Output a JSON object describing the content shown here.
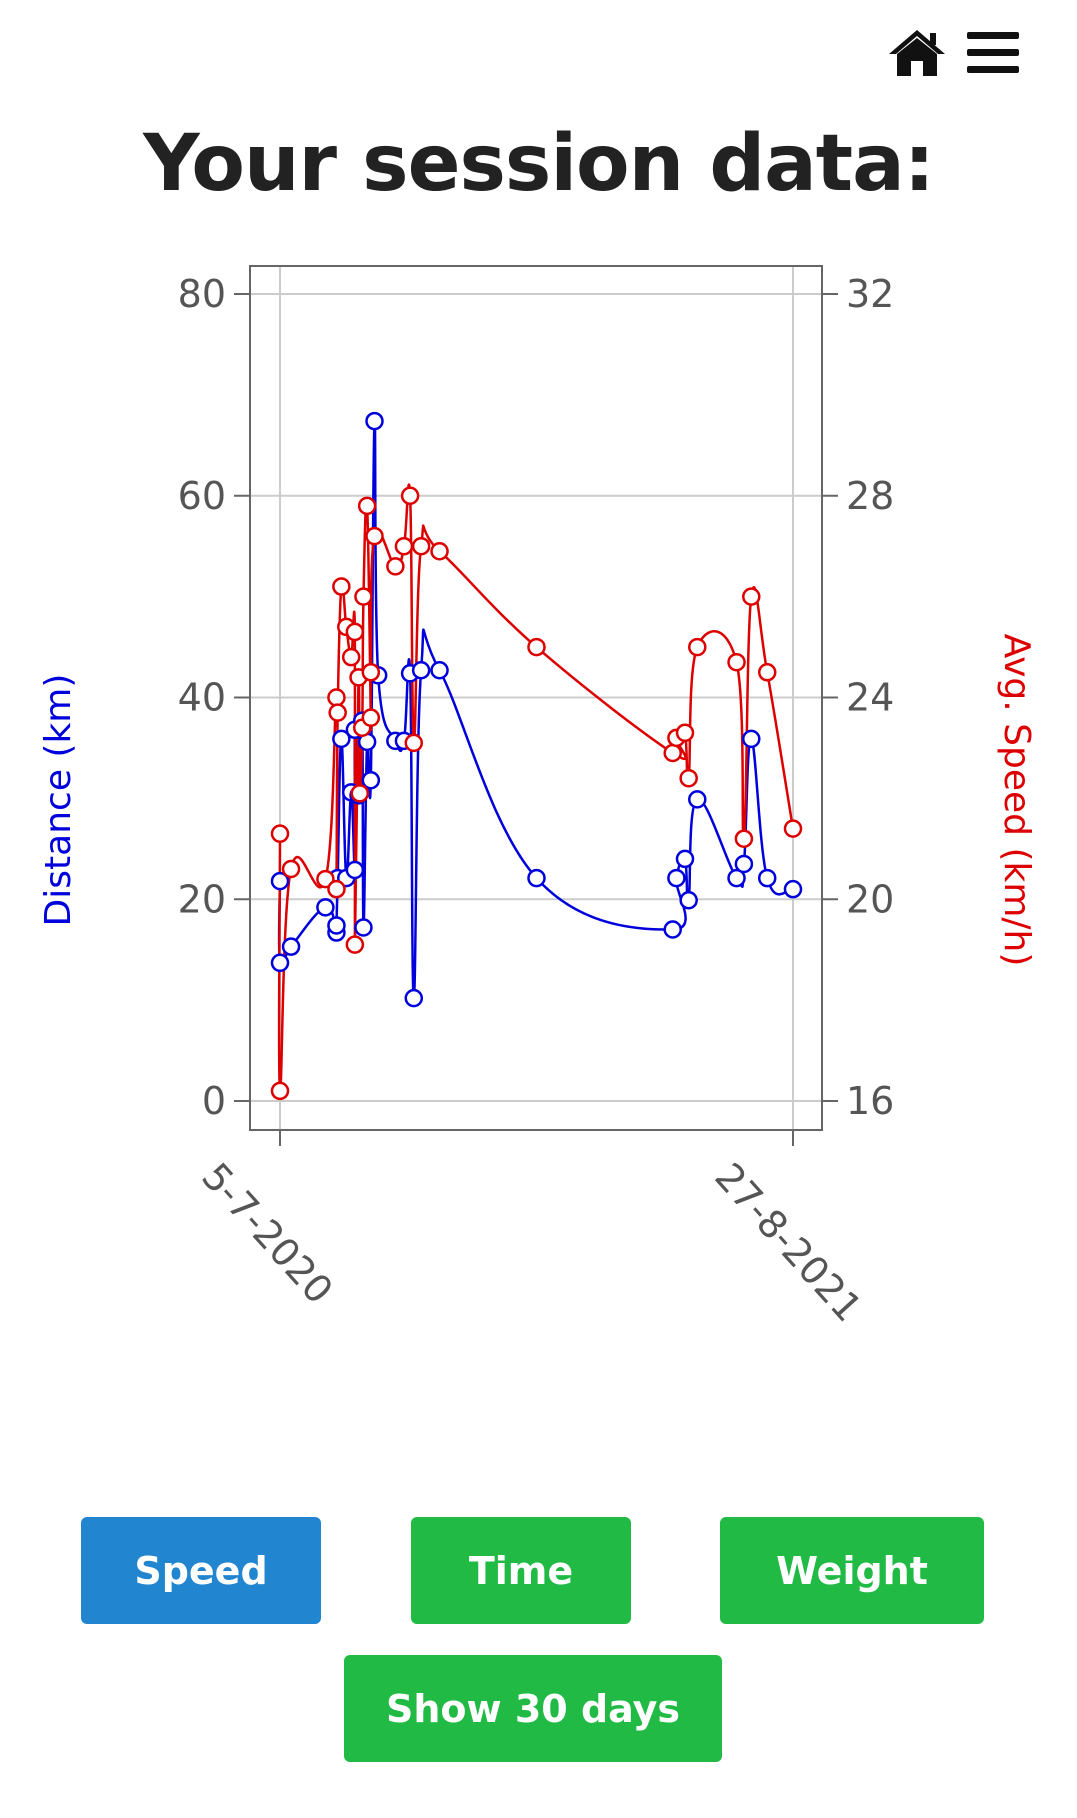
{
  "header": {
    "title": "Your session data:",
    "icons": [
      "home-icon",
      "menu-icon"
    ]
  },
  "colors": {
    "distance": "#0000dd",
    "speed": "#dd0000",
    "primary_button": "#2185d0",
    "secondary_button": "#21ba45",
    "grid": "#cccccc",
    "axis": "#666666"
  },
  "chart_data": {
    "type": "line",
    "xlabel": "",
    "x_range": [
      "2020-07-05",
      "2021-08-27"
    ],
    "x_tick_labels": [
      "5-7-2020",
      "27-8-2021"
    ],
    "y_left": {
      "label": "Distance (km)",
      "range": [
        0,
        80
      ],
      "ticks": [
        "0",
        "20",
        "40",
        "60",
        "80"
      ]
    },
    "y_right": {
      "label": "Avg. Speed (km/h)",
      "range": [
        16,
        32
      ],
      "ticks": [
        "16",
        "20",
        "24",
        "28",
        "32"
      ]
    },
    "grid": true,
    "series": [
      {
        "name": "Distance (km)",
        "axis": "left",
        "points": [
          [
            "2020-07-05",
            21.8
          ],
          [
            "2020-07-05",
            13.7
          ],
          [
            "2020-07-14",
            15.3
          ],
          [
            "2020-08-11",
            19.2
          ],
          [
            "2020-08-20",
            16.7
          ],
          [
            "2020-08-20",
            17.4
          ],
          [
            "2020-08-21",
            22.1
          ],
          [
            "2020-08-24",
            35.9
          ],
          [
            "2020-08-28",
            22.1
          ],
          [
            "2020-09-01",
            30.6
          ],
          [
            "2020-09-04",
            22.9
          ],
          [
            "2020-09-04",
            36.8
          ],
          [
            "2020-09-07",
            30.3
          ],
          [
            "2020-09-10",
            37.7
          ],
          [
            "2020-09-11",
            17.2
          ],
          [
            "2020-09-14",
            35.6
          ],
          [
            "2020-09-17",
            31.8
          ],
          [
            "2020-09-20",
            67.4
          ],
          [
            "2020-09-23",
            42.2
          ],
          [
            "2020-10-07",
            35.7
          ],
          [
            "2020-10-14",
            35.7
          ],
          [
            "2020-10-19",
            42.4
          ],
          [
            "2020-10-22",
            10.2
          ],
          [
            "2020-10-28",
            42.7
          ],
          [
            "2020-11-12",
            42.7
          ],
          [
            "2021-01-30",
            22.1
          ],
          [
            "2021-05-21",
            17.0
          ],
          [
            "2021-05-24",
            22.1
          ],
          [
            "2021-05-31",
            24.0
          ],
          [
            "2021-06-03",
            19.9
          ],
          [
            "2021-06-10",
            29.9
          ],
          [
            "2021-07-12",
            22.1
          ],
          [
            "2021-07-18",
            23.5
          ],
          [
            "2021-07-24",
            35.9
          ],
          [
            "2021-08-06",
            22.1
          ],
          [
            "2021-08-27",
            21.0
          ]
        ]
      },
      {
        "name": "Avg. Speed (km/h)",
        "axis": "right",
        "points": [
          [
            "2020-07-05",
            21.3
          ],
          [
            "2020-07-05",
            16.2
          ],
          [
            "2020-07-14",
            20.6
          ],
          [
            "2020-08-11",
            20.4
          ],
          [
            "2020-08-20",
            24.0
          ],
          [
            "2020-08-20",
            20.2
          ],
          [
            "2020-08-21",
            23.7
          ],
          [
            "2020-08-24",
            26.2
          ],
          [
            "2020-08-28",
            25.4
          ],
          [
            "2020-09-01",
            24.8
          ],
          [
            "2020-09-04",
            25.3
          ],
          [
            "2020-09-04",
            19.1
          ],
          [
            "2020-09-07",
            24.4
          ],
          [
            "2020-09-08",
            22.1
          ],
          [
            "2020-09-10",
            23.4
          ],
          [
            "2020-09-11",
            26.0
          ],
          [
            "2020-09-14",
            27.8
          ],
          [
            "2020-09-17",
            23.6
          ],
          [
            "2020-09-17",
            24.5
          ],
          [
            "2020-09-20",
            27.2
          ],
          [
            "2020-10-07",
            26.6
          ],
          [
            "2020-10-14",
            27.0
          ],
          [
            "2020-10-19",
            28.0
          ],
          [
            "2020-10-22",
            23.1
          ],
          [
            "2020-10-28",
            27.0
          ],
          [
            "2020-11-12",
            26.9
          ],
          [
            "2021-01-30",
            25.0
          ],
          [
            "2021-05-21",
            22.9
          ],
          [
            "2021-05-24",
            23.2
          ],
          [
            "2021-05-31",
            23.3
          ],
          [
            "2021-06-03",
            22.4
          ],
          [
            "2021-06-10",
            25.0
          ],
          [
            "2021-07-12",
            24.7
          ],
          [
            "2021-07-18",
            21.2
          ],
          [
            "2021-07-24",
            26.0
          ],
          [
            "2021-08-06",
            24.5
          ],
          [
            "2021-08-27",
            21.4
          ]
        ]
      }
    ]
  },
  "buttons": {
    "speed": "Speed",
    "time": "Time",
    "weight": "Weight",
    "show_days": "Show 30 days"
  }
}
